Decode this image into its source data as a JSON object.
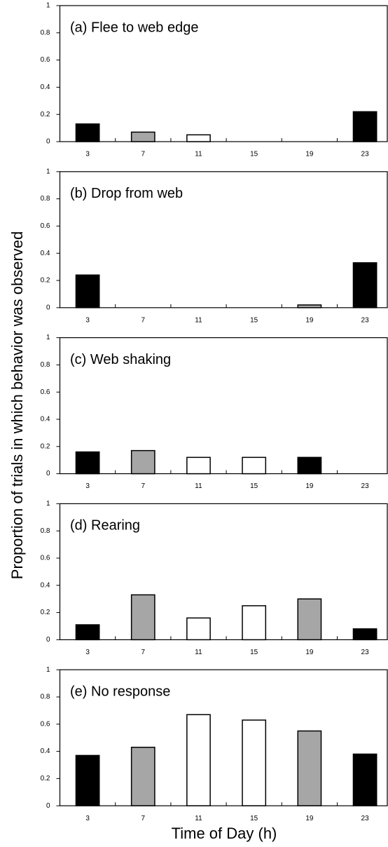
{
  "ylabel": "Proportion of trials in which behavior was observed",
  "xlabel": "Time of Day (h)",
  "chart_data": [
    {
      "type": "bar",
      "title": "(a) Flee to web edge",
      "categories": [
        "3",
        "7",
        "11",
        "15",
        "19",
        "23"
      ],
      "values": [
        0.13,
        0.07,
        0.05,
        0,
        0,
        0.22
      ],
      "colors": [
        "#000000",
        "#a6a6a6",
        "#ffffff",
        "#ffffff",
        "#a6a6a6",
        "#000000"
      ],
      "ylim": [
        0,
        1
      ],
      "yticks": [
        0,
        0.2,
        0.4,
        0.6,
        0.8,
        1
      ]
    },
    {
      "type": "bar",
      "title": "(b) Drop from web",
      "categories": [
        "3",
        "7",
        "11",
        "15",
        "19",
        "23"
      ],
      "values": [
        0.24,
        0,
        0,
        0,
        0.02,
        0.33
      ],
      "colors": [
        "#000000",
        "#a6a6a6",
        "#ffffff",
        "#ffffff",
        "#a6a6a6",
        "#000000"
      ],
      "ylim": [
        0,
        1
      ],
      "yticks": [
        0,
        0.2,
        0.4,
        0.6,
        0.8,
        1
      ]
    },
    {
      "type": "bar",
      "title": "(c) Web shaking",
      "categories": [
        "3",
        "7",
        "11",
        "15",
        "19",
        "23"
      ],
      "values": [
        0.16,
        0.17,
        0.12,
        0.12,
        0.12,
        0
      ],
      "colors": [
        "#000000",
        "#a6a6a6",
        "#ffffff",
        "#ffffff",
        "#000000",
        "#000000"
      ],
      "ylim": [
        0,
        1
      ],
      "yticks": [
        0,
        0.2,
        0.4,
        0.6,
        0.8,
        1
      ]
    },
    {
      "type": "bar",
      "title": "(d) Rearing",
      "categories": [
        "3",
        "7",
        "11",
        "15",
        "19",
        "23"
      ],
      "values": [
        0.11,
        0.33,
        0.16,
        0.25,
        0.3,
        0.08
      ],
      "colors": [
        "#000000",
        "#a6a6a6",
        "#ffffff",
        "#ffffff",
        "#a6a6a6",
        "#000000"
      ],
      "ylim": [
        0,
        1
      ],
      "yticks": [
        0,
        0.2,
        0.4,
        0.6,
        0.8,
        1
      ]
    },
    {
      "type": "bar",
      "title": "(e) No response",
      "categories": [
        "3",
        "7",
        "11",
        "15",
        "19",
        "23"
      ],
      "values": [
        0.37,
        0.43,
        0.67,
        0.63,
        0.55,
        0.38
      ],
      "colors": [
        "#000000",
        "#a6a6a6",
        "#ffffff",
        "#ffffff",
        "#a6a6a6",
        "#000000"
      ],
      "ylim": [
        0,
        1
      ],
      "yticks": [
        0,
        0.2,
        0.4,
        0.6,
        0.8,
        1
      ]
    }
  ]
}
